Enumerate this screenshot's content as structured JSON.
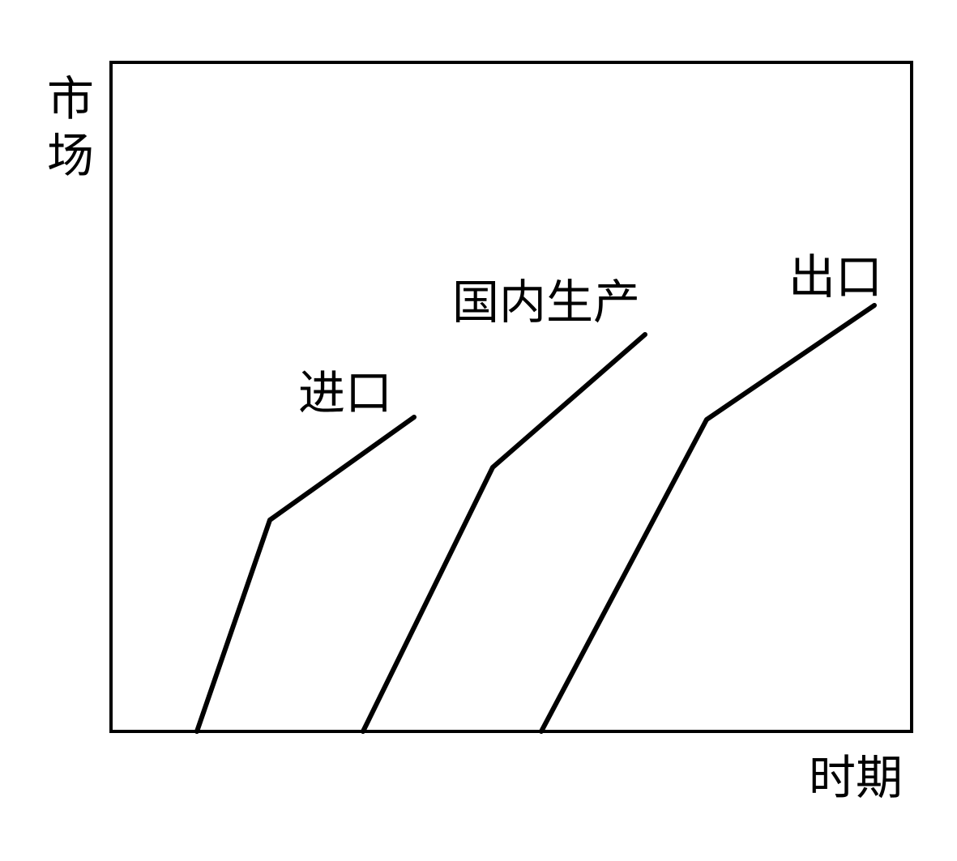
{
  "axes": {
    "y_label": [
      "市",
      "场"
    ],
    "x_label": "时期"
  },
  "curves": [
    {
      "name": "import",
      "label": "进口"
    },
    {
      "name": "domestic-production",
      "label": "国内生产"
    },
    {
      "name": "export",
      "label": "出口"
    }
  ],
  "colors": {
    "line": "#000000",
    "background": "#ffffff"
  }
}
